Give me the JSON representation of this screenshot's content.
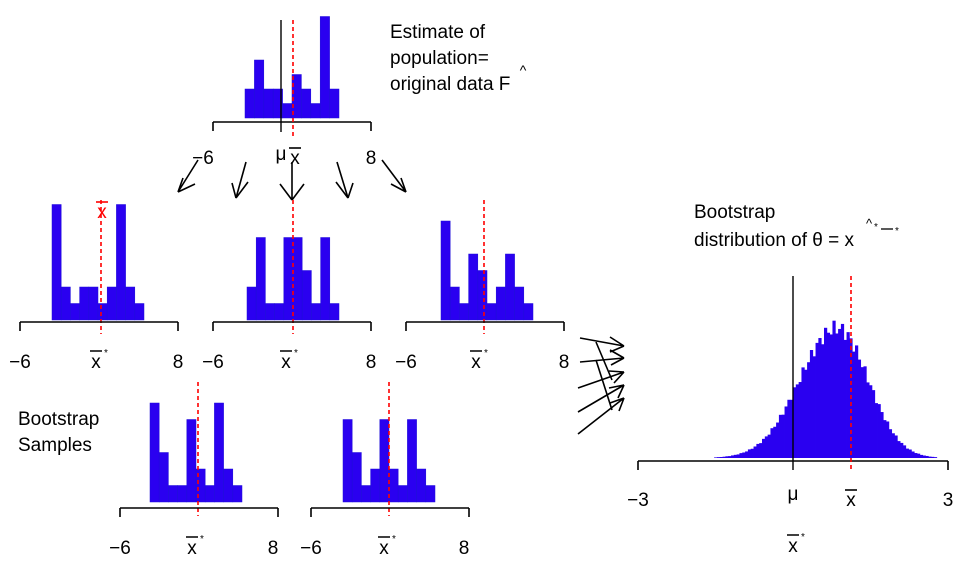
{
  "colors": {
    "bar": "#2a00f0",
    "bar_stroke": "#1e0fd8",
    "mean_line": "#ff0000",
    "axis": "#000000"
  },
  "labels": {
    "population_note": [
      "Estimate of",
      "population=",
      "original data F"
    ],
    "bootstrap_samples": [
      "Bootstrap",
      "Samples"
    ],
    "bootstrap_dist": [
      "Bootstrap",
      "distribution of θ = x"
    ],
    "mu": "μ",
    "xbar": "x",
    "xstar": "x",
    "star": "*",
    "hat": "^"
  },
  "axes": {
    "sample_min": "−6",
    "sample_max": "8",
    "dist_min": "−3",
    "dist_max": "3"
  },
  "chart_data": {
    "type": "histogram",
    "population_mean_mu": 0,
    "original_sample_mean": 1,
    "original_data_bar_heights": [
      2,
      4,
      2,
      2,
      1,
      3,
      2,
      1,
      7,
      2
    ],
    "bootstrap_sample_bar_heights": [
      [
        7,
        2,
        1,
        2,
        2,
        1,
        2,
        7,
        2,
        1
      ],
      [
        2,
        5,
        1,
        1,
        5,
        5,
        3,
        1,
        5,
        1
      ],
      [
        6,
        2,
        1,
        4,
        3,
        1,
        2,
        4,
        2,
        1
      ],
      [
        6,
        3,
        1,
        1,
        5,
        2,
        1,
        6,
        2,
        1
      ],
      [
        5,
        3,
        1,
        2,
        5,
        2,
        1,
        5,
        2,
        1
      ]
    ],
    "bootstrap_distribution": {
      "x_range": [
        -3,
        3
      ],
      "mean": 0.85,
      "sd": 0.6
    }
  }
}
